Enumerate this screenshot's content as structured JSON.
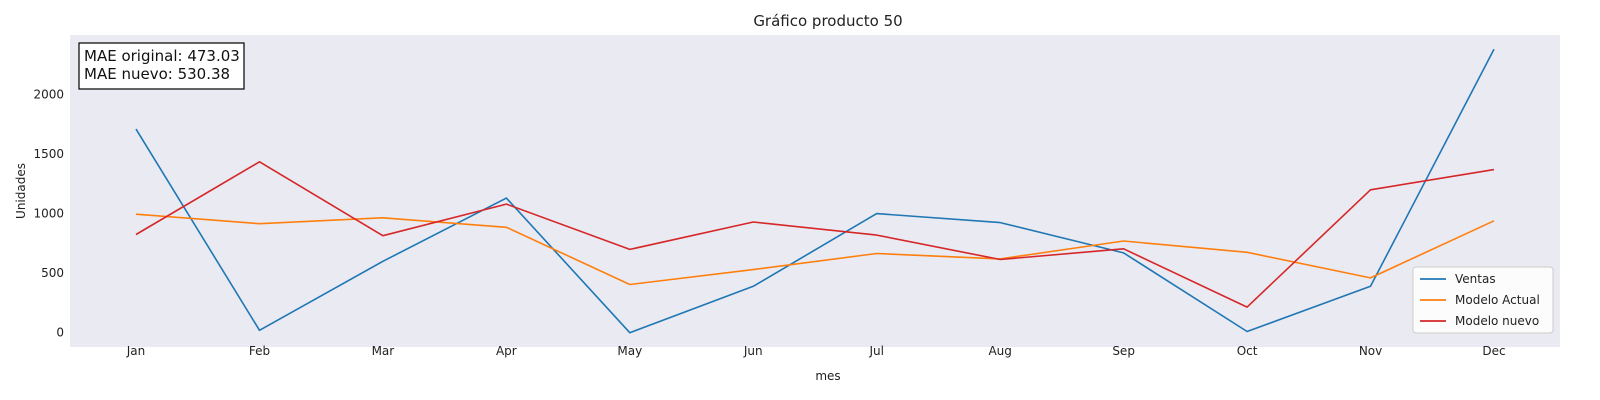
{
  "chart_data": {
    "type": "line",
    "title": "Gráfico producto 50",
    "xlabel": "mes",
    "ylabel": "Unidades",
    "categories": [
      "Jan",
      "Feb",
      "Mar",
      "Apr",
      "May",
      "Jun",
      "Jul",
      "Aug",
      "Sep",
      "Oct",
      "Nov",
      "Dec"
    ],
    "yticks": [
      0,
      500,
      1000,
      1500,
      2000
    ],
    "ylim": [
      -120,
      2500
    ],
    "grid": false,
    "legend_position": "bottom-right",
    "annotation": {
      "line1": "MAE original: 473.03",
      "line2": "MAE nuevo: 530.38"
    },
    "series": [
      {
        "name": "Ventas",
        "color": "#1f77b4",
        "values": [
          1710,
          20,
          600,
          1130,
          0,
          390,
          1000,
          925,
          670,
          10,
          390,
          2380
        ]
      },
      {
        "name": "Modelo Actual",
        "color": "#ff7f0e",
        "values": [
          995,
          915,
          965,
          885,
          405,
          530,
          665,
          620,
          770,
          675,
          460,
          940
        ]
      },
      {
        "name": "Modelo nuevo",
        "color": "#d62728",
        "values": [
          825,
          1435,
          815,
          1080,
          700,
          930,
          820,
          615,
          705,
          215,
          1200,
          1370
        ]
      }
    ]
  }
}
